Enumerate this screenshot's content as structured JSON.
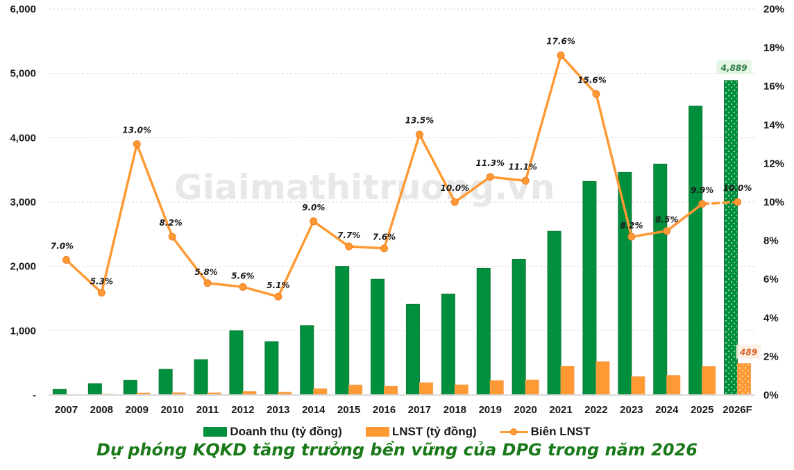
{
  "chart_data": {
    "type": "bar",
    "title": "Dự phóng KQKD tăng trưởng bền vững của DPG trong năm 2026",
    "watermark": "Giaimathitruong.vn",
    "categories": [
      "2007",
      "2008",
      "2009",
      "2010",
      "2011",
      "2012",
      "2013",
      "2014",
      "2015",
      "2016",
      "2017",
      "2018",
      "2019",
      "2020",
      "2021",
      "2022",
      "2023",
      "2024",
      "2025",
      "2026F"
    ],
    "series": [
      {
        "name": "Doanh thu (tỷ đồng)",
        "type": "bar",
        "axis": "left",
        "color": "#008f3c",
        "values": [
          90,
          175,
          230,
          400,
          550,
          1000,
          830,
          1080,
          2000,
          1800,
          1410,
          1570,
          1970,
          2110,
          2545,
          3320,
          3460,
          3590,
          4490,
          4889
        ],
        "forecast_index": 19,
        "labels": {
          "19": "4,889"
        }
      },
      {
        "name": "LNST (tỷ đồng)",
        "type": "bar",
        "axis": "left",
        "color": "#ff9933",
        "values": [
          6,
          9,
          30,
          33,
          32,
          56,
          42,
          97,
          154,
          137,
          190,
          157,
          223,
          234,
          448,
          518,
          284,
          305,
          445,
          489
        ],
        "forecast_index": 19,
        "labels": {
          "19": "489"
        }
      },
      {
        "name": "Biên LNST",
        "type": "line",
        "axis": "right",
        "color": "#ff9933",
        "values": [
          7.0,
          5.3,
          13.0,
          8.2,
          5.8,
          5.6,
          5.1,
          9.0,
          7.7,
          7.6,
          13.5,
          10.0,
          11.3,
          11.1,
          17.6,
          15.6,
          8.2,
          8.5,
          9.9,
          10.0
        ],
        "labels": [
          "7.0%",
          "5.3%",
          "13.0%",
          "8.2%",
          "5.8%",
          "5.6%",
          "5.1%",
          "9.0%",
          "7.7%",
          "7.6%",
          "13.5%",
          "10.0%",
          "11.3%",
          "11.1%",
          "17.6%",
          "15.6%",
          "8.2%",
          "8.5%",
          "9.9%",
          "10.0%"
        ],
        "dashed_from_index": 18
      }
    ],
    "y_left": {
      "range": [
        0,
        6000
      ],
      "ticks": [
        0,
        1000,
        2000,
        3000,
        4000,
        5000,
        6000
      ],
      "tick_labels": [
        "-",
        "1,000",
        "2,000",
        "3,000",
        "4,000",
        "5,000",
        "6,000"
      ]
    },
    "y_right": {
      "range": [
        0,
        20
      ],
      "ticks": [
        0,
        2,
        4,
        6,
        8,
        10,
        12,
        14,
        16,
        18,
        20
      ],
      "tick_labels": [
        "0%",
        "2%",
        "4%",
        "6%",
        "8%",
        "10%",
        "12%",
        "14%",
        "16%",
        "18%",
        "20%"
      ]
    },
    "grid": true,
    "legend_position": "bottom"
  }
}
